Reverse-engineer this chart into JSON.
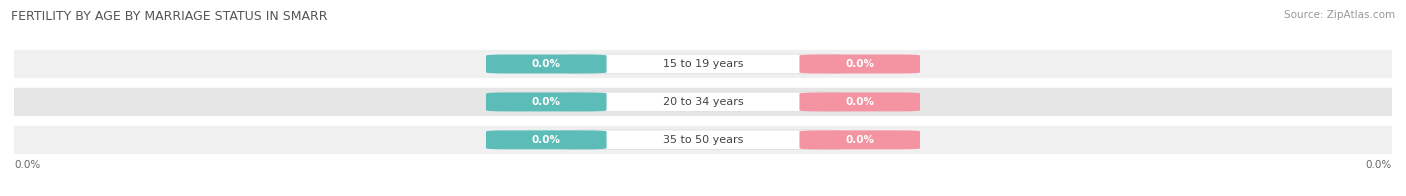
{
  "title": "FERTILITY BY AGE BY MARRIAGE STATUS IN SMARR",
  "source": "Source: ZipAtlas.com",
  "categories": [
    "15 to 19 years",
    "20 to 34 years",
    "35 to 50 years"
  ],
  "married_values": [
    0.0,
    0.0,
    0.0
  ],
  "unmarried_values": [
    0.0,
    0.0,
    0.0
  ],
  "married_color": "#5bbcb8",
  "unmarried_color": "#f493a2",
  "row_bg_colors": [
    "#f0f0f0",
    "#e6e6e6",
    "#f0f0f0"
  ],
  "title_fontsize": 9,
  "source_fontsize": 7.5,
  "label_fontsize": 8,
  "tick_fontsize": 7.5,
  "background_color": "#ffffff",
  "x_left_label": "0.0%",
  "x_right_label": "0.0%"
}
